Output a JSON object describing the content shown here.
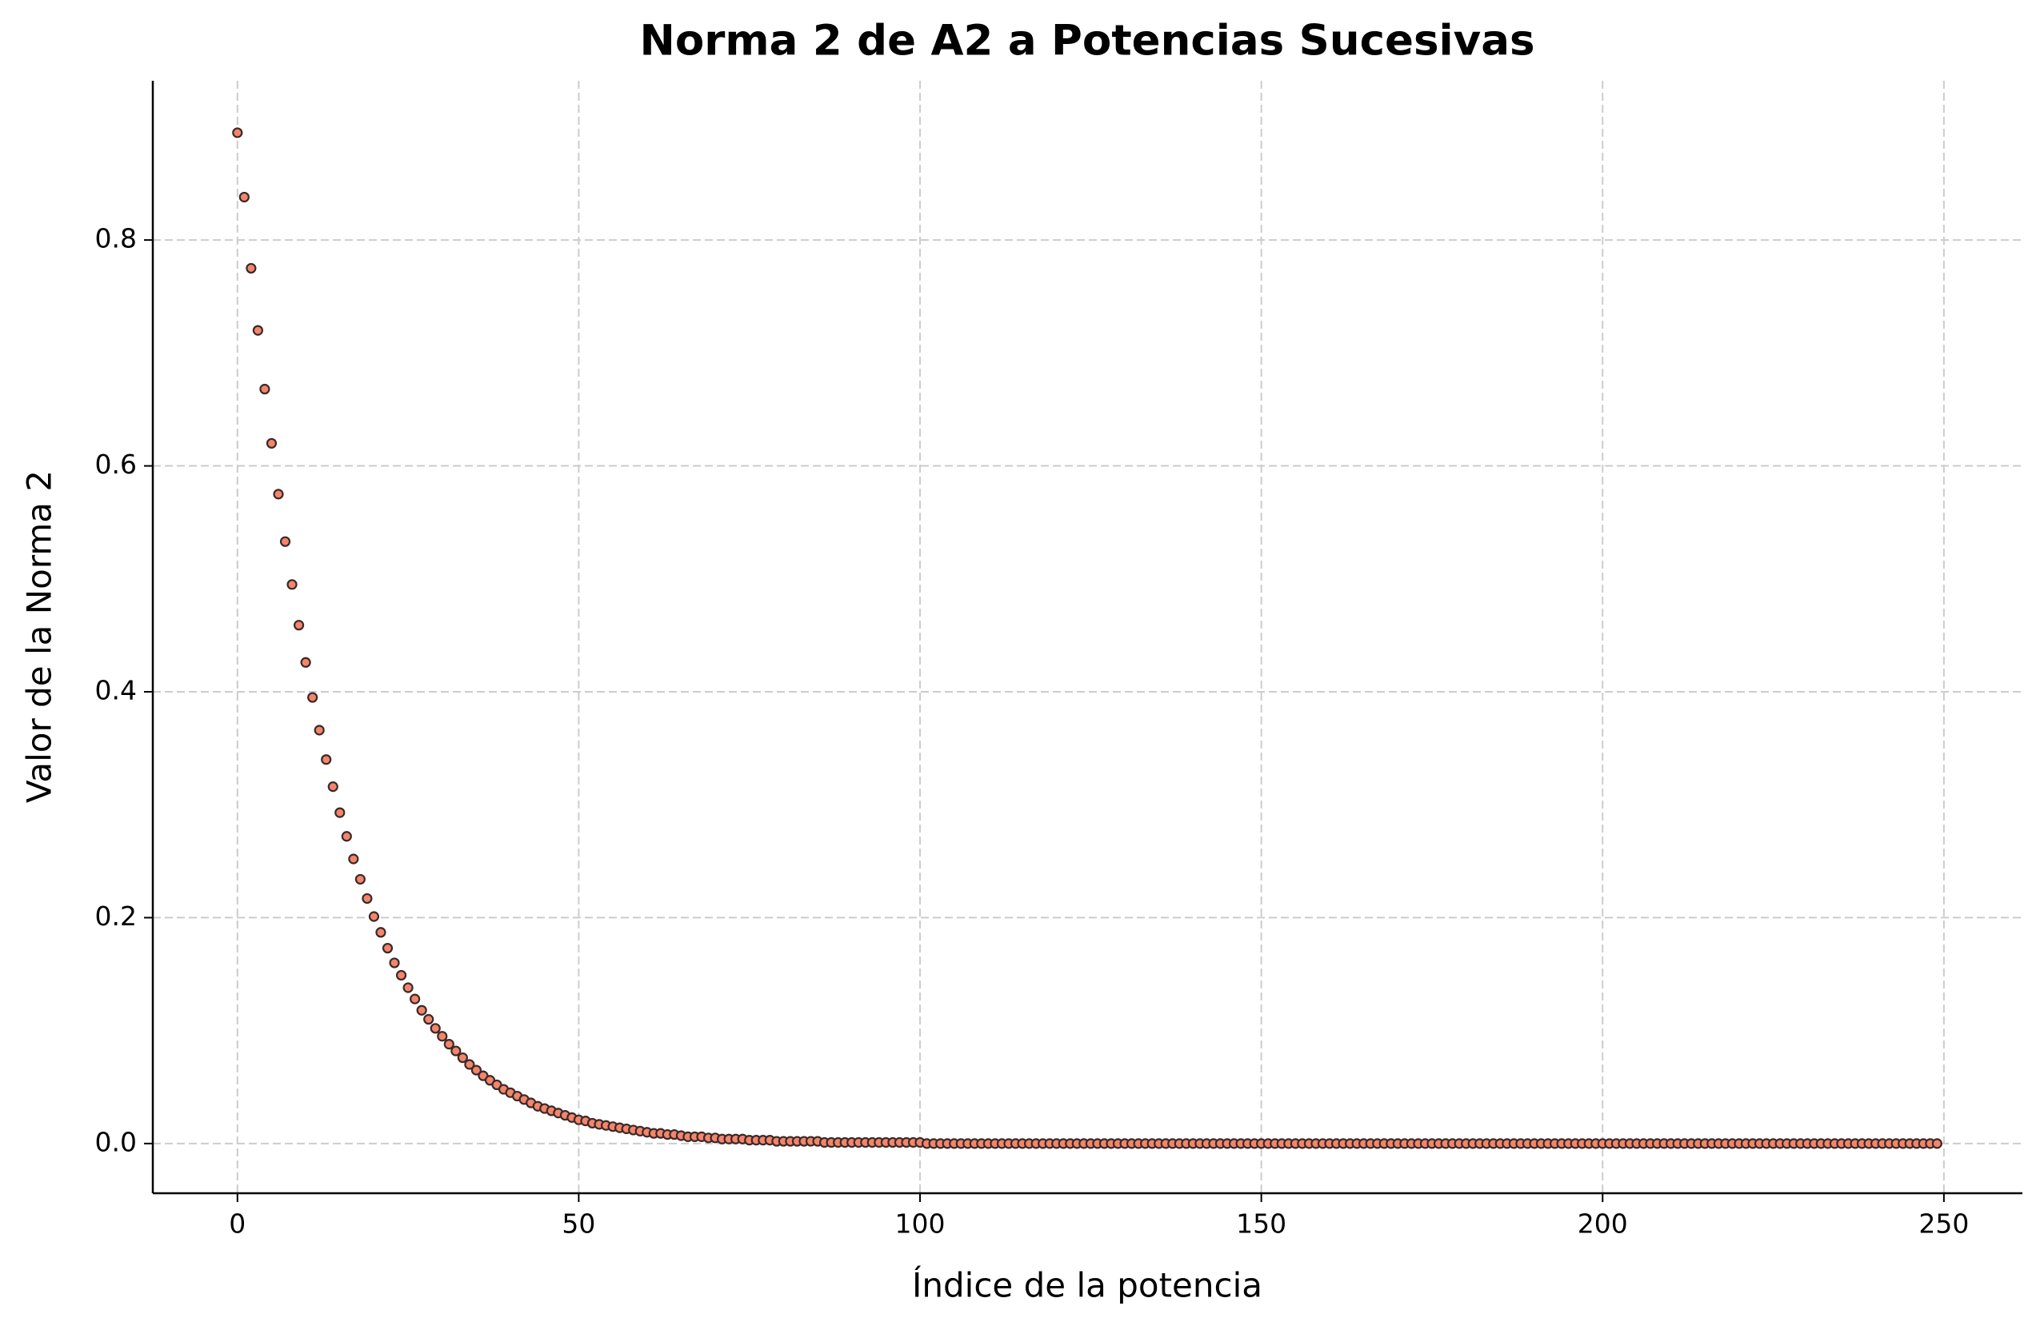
{
  "chart_data": {
    "type": "scatter",
    "title": "Norma 2 de A2 a Potencias Sucesivas",
    "x_label": "Índice de la potencia",
    "y_label": "Valor de la Norma 2",
    "grid": true,
    "marker_color": "#f4856a",
    "marker_edge_color": "#3a2a2a",
    "xlim": [
      -12.4,
      261.5
    ],
    "ylim": [
      -0.044,
      0.941
    ],
    "xticks": [
      0,
      50,
      100,
      150,
      200,
      250
    ],
    "yticks": [
      {
        "value": 0,
        "label": "0.0"
      },
      0.2,
      0.4,
      0.6,
      0.8
    ],
    "x": [
      0,
      1,
      2,
      3,
      4,
      5,
      6,
      7,
      8,
      9,
      10,
      11,
      12,
      13,
      14,
      15,
      16,
      17,
      18,
      19,
      20,
      21,
      22,
      23,
      24,
      25,
      26,
      27,
      28,
      29,
      30,
      31,
      32,
      33,
      34,
      35,
      36,
      37,
      38,
      39,
      40,
      41,
      42,
      43,
      44,
      45,
      46,
      47,
      48,
      49,
      50,
      51,
      52,
      53,
      54,
      55,
      56,
      57,
      58,
      59,
      60,
      61,
      62,
      63,
      64,
      65,
      66,
      67,
      68,
      69,
      70,
      71,
      72,
      73,
      74,
      75,
      76,
      77,
      78,
      79,
      80,
      81,
      82,
      83,
      84,
      85,
      86,
      87,
      88,
      89,
      90,
      91,
      92,
      93,
      94,
      95,
      96,
      97,
      98,
      99,
      100,
      101,
      102,
      103,
      104,
      105,
      106,
      107,
      108,
      109,
      110,
      111,
      112,
      113,
      114,
      115,
      116,
      117,
      118,
      119,
      120,
      121,
      122,
      123,
      124,
      125,
      126,
      127,
      128,
      129,
      130,
      131,
      132,
      133,
      134,
      135,
      136,
      137,
      138,
      139,
      140,
      141,
      142,
      143,
      144,
      145,
      146,
      147,
      148,
      149,
      150,
      151,
      152,
      153,
      154,
      155,
      156,
      157,
      158,
      159,
      160,
      161,
      162,
      163,
      164,
      165,
      166,
      167,
      168,
      169,
      170,
      171,
      172,
      173,
      174,
      175,
      176,
      177,
      178,
      179,
      180,
      181,
      182,
      183,
      184,
      185,
      186,
      187,
      188,
      189,
      190,
      191,
      192,
      193,
      194,
      195,
      196,
      197,
      198,
      199,
      200,
      201,
      202,
      203,
      204,
      205,
      206,
      207,
      208,
      209,
      210,
      211,
      212,
      213,
      214,
      215,
      216,
      217,
      218,
      219,
      220,
      221,
      222,
      223,
      224,
      225,
      226,
      227,
      228,
      229,
      230,
      231,
      232,
      233,
      234,
      235,
      236,
      237,
      238,
      239,
      240,
      241,
      242,
      243,
      244,
      245,
      246,
      247,
      248,
      249
    ],
    "values": [
      0.895,
      0.838,
      0.775,
      0.72,
      0.668,
      0.62,
      0.575,
      0.533,
      0.495,
      0.459,
      0.426,
      0.395,
      0.366,
      0.34,
      0.316,
      0.293,
      0.272,
      0.252,
      0.234,
      0.217,
      0.201,
      0.187,
      0.173,
      0.16,
      0.149,
      0.138,
      0.128,
      0.118,
      0.11,
      0.102,
      0.095,
      0.088,
      0.082,
      0.076,
      0.07,
      0.065,
      0.06,
      0.056,
      0.052,
      0.048,
      0.045,
      0.042,
      0.039,
      0.036,
      0.033,
      0.031,
      0.029,
      0.027,
      0.025,
      0.023,
      0.021,
      0.02,
      0.018,
      0.017,
      0.016,
      0.015,
      0.014,
      0.013,
      0.012,
      0.011,
      0.01,
      0.009,
      0.009,
      0.008,
      0.008,
      0.007,
      0.006,
      0.006,
      0.006,
      0.005,
      0.005,
      0.004,
      0.004,
      0.004,
      0.004,
      0.003,
      0.003,
      0.003,
      0.003,
      0.002,
      0.002,
      0.002,
      0.002,
      0.002,
      0.002,
      0.002,
      0.001,
      0.001,
      0.001,
      0.001,
      0.001,
      0.001,
      0.001,
      0.001,
      0.001,
      0.001,
      0.001,
      0.001,
      0.001,
      0.001,
      0.001,
      0,
      0,
      0,
      0,
      0,
      0,
      0,
      0,
      0,
      0,
      0,
      0,
      0,
      0,
      0,
      0,
      0,
      0,
      0,
      0,
      0,
      0,
      0,
      0,
      0,
      0,
      0,
      0,
      0,
      0,
      0,
      0,
      0,
      0,
      0,
      0,
      0,
      0,
      0,
      0,
      0,
      0,
      0,
      0,
      0,
      0,
      0,
      0,
      0,
      0,
      0,
      0,
      0,
      0,
      0,
      0,
      0,
      0,
      0,
      0,
      0,
      0,
      0,
      0,
      0,
      0,
      0,
      0,
      0,
      0,
      0,
      0,
      0,
      0,
      0,
      0,
      0,
      0,
      0,
      0,
      0,
      0,
      0,
      0,
      0,
      0,
      0,
      0,
      0,
      0,
      0,
      0,
      0,
      0,
      0,
      0,
      0,
      0,
      0,
      0,
      0,
      0,
      0,
      0,
      0,
      0,
      0,
      0,
      0,
      0,
      0,
      0,
      0,
      0,
      0,
      0,
      0,
      0,
      0,
      0,
      0,
      0,
      0,
      0,
      0,
      0,
      0,
      0,
      0,
      0,
      0,
      0,
      0,
      0,
      0,
      0,
      0,
      0,
      0,
      0,
      0,
      0,
      0,
      0,
      0,
      0,
      0,
      0,
      0
    ]
  }
}
